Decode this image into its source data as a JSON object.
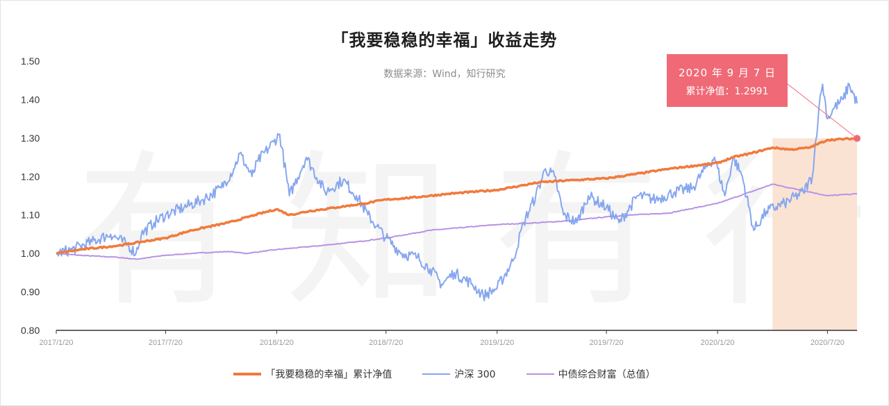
{
  "title": "「我要稳稳的幸福」收益走势",
  "subtitle": "数据来源：Wind，知行研究",
  "watermark": "有知有行",
  "callout": {
    "date": "2020 年 9 月 7  日",
    "value": "累计净值：1.2991"
  },
  "colors": {
    "fund": "#f07a3c",
    "index": "#86a6ef",
    "bond": "#b891e6",
    "shade": "#fbe3d4",
    "callout": "#ef6a76",
    "axis": "#333333"
  },
  "chart_data": {
    "type": "line",
    "x_ticks": [
      "2017/1/20",
      "2017/7/20",
      "2018/1/20",
      "2018/7/20",
      "2019/1/20",
      "2019/7/20",
      "2020/1/20",
      "2020/7/20"
    ],
    "y_ticks": [
      "0.80",
      "0.90",
      "1.00",
      "1.10",
      "1.20",
      "1.30",
      "1.40",
      "1.50"
    ],
    "ylim": [
      0.8,
      1.5
    ],
    "xlim": [
      "2017-01-20",
      "2020-09-07"
    ],
    "shaded_region": [
      "2020-04-20",
      "2020-09-07"
    ],
    "highlight_point": {
      "date": "2020-09-07",
      "value": 1.2991
    },
    "series": [
      {
        "name": "「我要稳稳的幸福」累计净值",
        "color": "#f07a3c",
        "points": [
          [
            "2017-01-20",
            1.0
          ],
          [
            "2017-03-01",
            1.01
          ],
          [
            "2017-05-01",
            1.02
          ],
          [
            "2017-07-20",
            1.04
          ],
          [
            "2017-09-01",
            1.06
          ],
          [
            "2017-11-01",
            1.08
          ],
          [
            "2017-12-15",
            1.1
          ],
          [
            "2018-01-20",
            1.115
          ],
          [
            "2018-02-10",
            1.1
          ],
          [
            "2018-03-15",
            1.11
          ],
          [
            "2018-05-01",
            1.12
          ],
          [
            "2018-06-15",
            1.13
          ],
          [
            "2018-07-20",
            1.14
          ],
          [
            "2018-09-01",
            1.145
          ],
          [
            "2018-11-01",
            1.155
          ],
          [
            "2019-01-20",
            1.165
          ],
          [
            "2019-04-01",
            1.185
          ],
          [
            "2019-05-20",
            1.19
          ],
          [
            "2019-07-20",
            1.195
          ],
          [
            "2019-09-01",
            1.205
          ],
          [
            "2019-11-01",
            1.22
          ],
          [
            "2020-01-20",
            1.235
          ],
          [
            "2020-02-15",
            1.25
          ],
          [
            "2020-03-15",
            1.26
          ],
          [
            "2020-04-20",
            1.275
          ],
          [
            "2020-05-20",
            1.27
          ],
          [
            "2020-06-20",
            1.275
          ],
          [
            "2020-07-20",
            1.295
          ],
          [
            "2020-09-07",
            1.2991
          ]
        ]
      },
      {
        "name": "沪深 300",
        "color": "#86a6ef",
        "points": [
          [
            "2017-01-20",
            1.0
          ],
          [
            "2017-02-15",
            1.01
          ],
          [
            "2017-03-20",
            1.03
          ],
          [
            "2017-04-20",
            1.05
          ],
          [
            "2017-05-20",
            1.02
          ],
          [
            "2017-06-01",
            1.0
          ],
          [
            "2017-06-10",
            1.05
          ],
          [
            "2017-07-01",
            1.08
          ],
          [
            "2017-07-20",
            1.1
          ],
          [
            "2017-08-20",
            1.12
          ],
          [
            "2017-09-20",
            1.14
          ],
          [
            "2017-10-20",
            1.17
          ],
          [
            "2017-11-10",
            1.22
          ],
          [
            "2017-11-20",
            1.26
          ],
          [
            "2017-12-10",
            1.2
          ],
          [
            "2017-12-20",
            1.24
          ],
          [
            "2018-01-15",
            1.29
          ],
          [
            "2018-01-25",
            1.31
          ],
          [
            "2018-02-10",
            1.15
          ],
          [
            "2018-03-10",
            1.25
          ],
          [
            "2018-04-10",
            1.16
          ],
          [
            "2018-05-10",
            1.19
          ],
          [
            "2018-06-01",
            1.15
          ],
          [
            "2018-06-20",
            1.1
          ],
          [
            "2018-07-05",
            1.07
          ],
          [
            "2018-07-20",
            1.04
          ],
          [
            "2018-08-15",
            1.0
          ],
          [
            "2018-09-10",
            0.99
          ],
          [
            "2018-10-01",
            0.96
          ],
          [
            "2018-10-20",
            0.92
          ],
          [
            "2018-11-10",
            0.95
          ],
          [
            "2018-12-10",
            0.92
          ],
          [
            "2018-12-28",
            0.89
          ],
          [
            "2019-01-20",
            0.91
          ],
          [
            "2019-02-15",
            0.98
          ],
          [
            "2019-03-05",
            1.08
          ],
          [
            "2019-03-25",
            1.15
          ],
          [
            "2019-04-10",
            1.22
          ],
          [
            "2019-04-25",
            1.2
          ],
          [
            "2019-05-10",
            1.1
          ],
          [
            "2019-06-01",
            1.08
          ],
          [
            "2019-06-20",
            1.15
          ],
          [
            "2019-07-20",
            1.12
          ],
          [
            "2019-08-10",
            1.08
          ],
          [
            "2019-09-10",
            1.15
          ],
          [
            "2019-10-10",
            1.14
          ],
          [
            "2019-11-10",
            1.16
          ],
          [
            "2019-12-10",
            1.17
          ],
          [
            "2019-12-30",
            1.22
          ],
          [
            "2020-01-15",
            1.25
          ],
          [
            "2020-02-01",
            1.15
          ],
          [
            "2020-02-15",
            1.25
          ],
          [
            "2020-03-01",
            1.2
          ],
          [
            "2020-03-20",
            1.06
          ],
          [
            "2020-04-10",
            1.11
          ],
          [
            "2020-05-10",
            1.13
          ],
          [
            "2020-06-10",
            1.16
          ],
          [
            "2020-06-25",
            1.2
          ],
          [
            "2020-07-06",
            1.38
          ],
          [
            "2020-07-12",
            1.44
          ],
          [
            "2020-07-20",
            1.35
          ],
          [
            "2020-08-01",
            1.38
          ],
          [
            "2020-08-15",
            1.4
          ],
          [
            "2020-08-25",
            1.44
          ],
          [
            "2020-09-07",
            1.39
          ]
        ]
      },
      {
        "name": "中债综合财富（总值）",
        "color": "#b891e6",
        "points": [
          [
            "2017-01-20",
            1.0
          ],
          [
            "2017-03-01",
            0.995
          ],
          [
            "2017-05-01",
            0.99
          ],
          [
            "2017-06-01",
            0.985
          ],
          [
            "2017-07-20",
            0.995
          ],
          [
            "2017-09-01",
            1.0
          ],
          [
            "2017-11-01",
            1.005
          ],
          [
            "2017-12-01",
            1.0
          ],
          [
            "2018-01-20",
            1.01
          ],
          [
            "2018-04-01",
            1.02
          ],
          [
            "2018-06-01",
            1.03
          ],
          [
            "2018-07-20",
            1.04
          ],
          [
            "2018-10-01",
            1.06
          ],
          [
            "2019-01-20",
            1.075
          ],
          [
            "2019-04-01",
            1.08
          ],
          [
            "2019-05-20",
            1.085
          ],
          [
            "2019-07-20",
            1.095
          ],
          [
            "2019-09-01",
            1.1
          ],
          [
            "2019-11-01",
            1.105
          ],
          [
            "2020-01-20",
            1.13
          ],
          [
            "2020-03-15",
            1.16
          ],
          [
            "2020-04-20",
            1.18
          ],
          [
            "2020-05-20",
            1.17
          ],
          [
            "2020-06-20",
            1.16
          ],
          [
            "2020-07-20",
            1.15
          ],
          [
            "2020-09-07",
            1.155
          ]
        ]
      }
    ]
  }
}
